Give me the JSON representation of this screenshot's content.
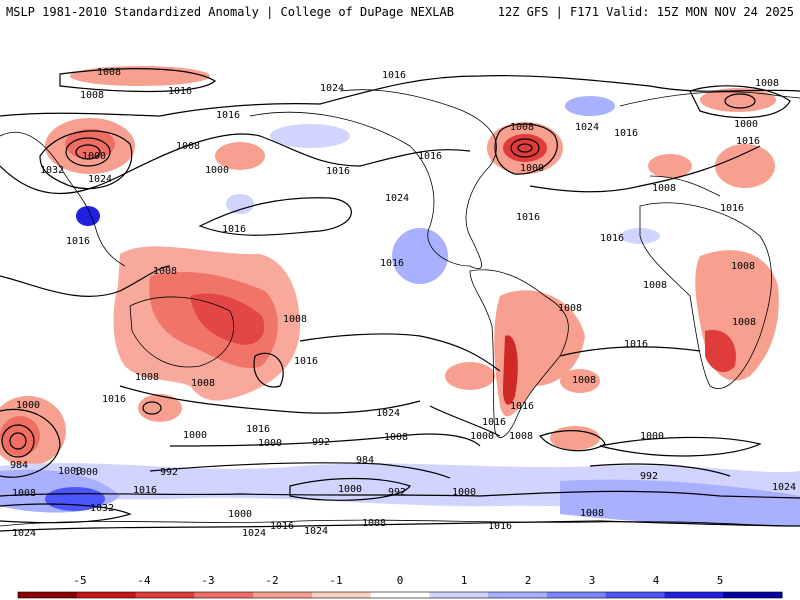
{
  "header": {
    "left_title": "MSLP 1981-2010 Standardized Anomaly | College of DuPage NEXLAB",
    "right_title": "12Z GFS | F171 Valid: 15Z MON NOV 24 2025"
  },
  "isobar_labels": [
    "1008",
    "1016",
    "1008",
    "1016",
    "1024",
    "1016",
    "1008",
    "1016",
    "1008",
    "1000",
    "1032",
    "1024",
    "1000",
    "1008",
    "1016",
    "1000",
    "1016",
    "1024",
    "1008",
    "1016",
    "1008",
    "1000",
    "1016",
    "1024",
    "1016",
    "1008",
    "1016",
    "1016",
    "1016",
    "1008",
    "1016",
    "1016",
    "1008",
    "1008",
    "1008",
    "1016",
    "1008",
    "1008",
    "1016",
    "1000",
    "1016",
    "1000",
    "1000",
    "1016",
    "1008",
    "1024",
    "1000",
    "992",
    "1008",
    "1016",
    "1000",
    "1008",
    "984",
    "1000",
    "992",
    "984",
    "992",
    "1000",
    "992",
    "1000",
    "1032",
    "1024",
    "1008",
    "1000",
    "1016",
    "1024",
    "1024",
    "1008",
    "1016",
    "1008",
    "1024",
    "1016",
    "1000"
  ],
  "legend": {
    "ticks": [
      "-5",
      "-4",
      "-3",
      "-2",
      "-1",
      "0",
      "1",
      "2",
      "3",
      "4",
      "5"
    ],
    "colors": [
      "#8b0000",
      "#c81414",
      "#e03c3c",
      "#ef6e64",
      "#f7a090",
      "#fdd0c4",
      "#ffffff",
      "#d0d4ff",
      "#a8b0ff",
      "#7c84ff",
      "#4c56ff",
      "#2020e0",
      "#0000a0"
    ]
  },
  "colors": {
    "contour": "#000000",
    "land_border": "#000000",
    "ocean": "#ffffff"
  }
}
